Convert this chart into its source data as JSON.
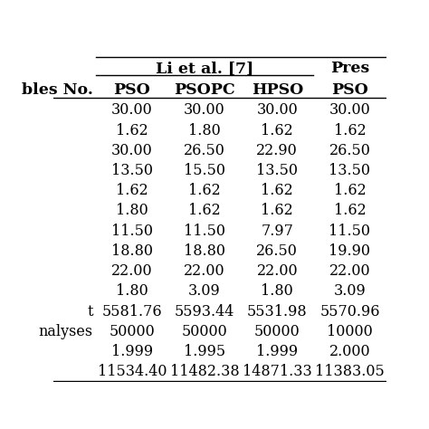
{
  "group_header_li": "Li et al. [7]",
  "group_header_pres": "Pres",
  "subheaders": [
    "PSO",
    "PSOPC",
    "HPSO",
    "PSO"
  ],
  "rows": [
    [
      "30.00",
      "30.00",
      "30.00",
      "30.00"
    ],
    [
      "1.62",
      "1.80",
      "1.62",
      "1.62"
    ],
    [
      "30.00",
      "26.50",
      "22.90",
      "26.50"
    ],
    [
      "13.50",
      "15.50",
      "13.50",
      "13.50"
    ],
    [
      "1.62",
      "1.62",
      "1.62",
      "1.62"
    ],
    [
      "1.80",
      "1.62",
      "1.62",
      "1.62"
    ],
    [
      "11.50",
      "11.50",
      "7.97",
      "11.50"
    ],
    [
      "18.80",
      "18.80",
      "26.50",
      "19.90"
    ],
    [
      "22.00",
      "22.00",
      "22.00",
      "22.00"
    ],
    [
      "1.80",
      "3.09",
      "1.80",
      "3.09"
    ],
    [
      "5581.76",
      "5593.44",
      "5531.98",
      "5570.96"
    ],
    [
      "50000",
      "50000",
      "50000",
      "10000"
    ],
    [
      "1.999",
      "1.995",
      "1.999",
      "2.000"
    ],
    [
      "11534.40",
      "11482.38",
      "14871.33",
      "11383.05"
    ]
  ],
  "row_labels": [
    "",
    "",
    "",
    "",
    "",
    "",
    "",
    "",
    "",
    "",
    "t",
    "nalyses",
    "",
    ""
  ],
  "left_header_label": "bles No.",
  "line_color": "#000000",
  "text_color": "#000000",
  "font_size": 11.5,
  "header_font_size": 12.5
}
